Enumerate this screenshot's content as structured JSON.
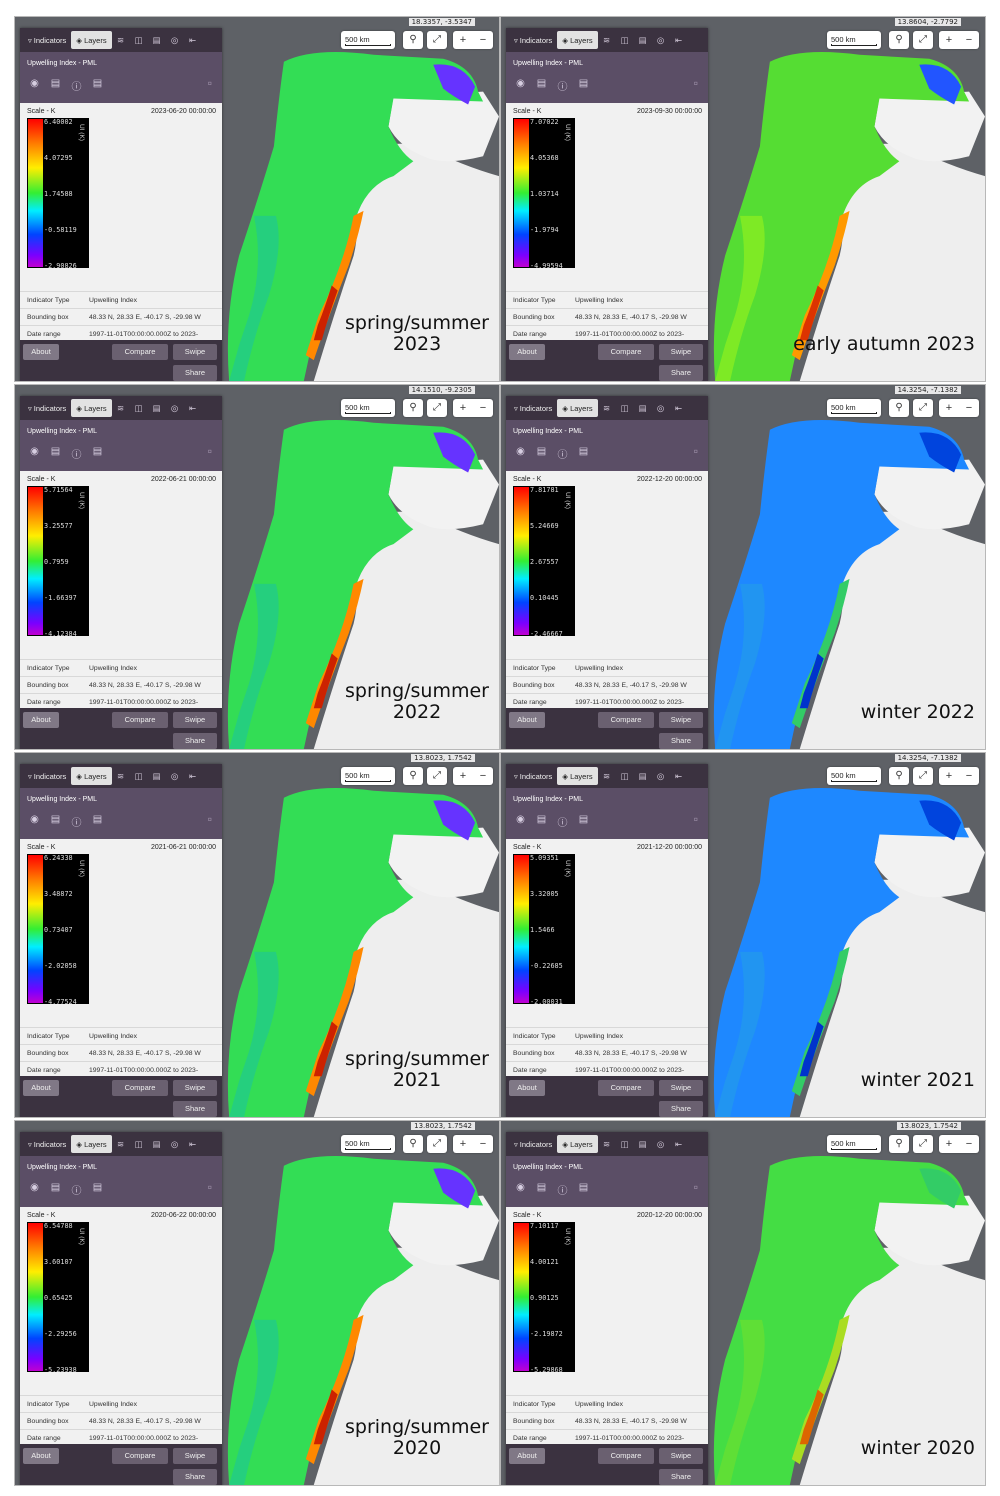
{
  "ui": {
    "tab_indicators": "Indicators",
    "tab_layers": "Layers",
    "layer_name": "Upwelling Index - PML",
    "scale_label": "Scale - K",
    "unit": "UI (K)",
    "scalebar": "500 km",
    "info": [
      {
        "key": "Indicator Type",
        "value": "Upwelling Index"
      },
      {
        "key": "Bounding box",
        "value": "48.33 N, 28.33 E, -40.17 S, -29.98 W"
      },
      {
        "key": "Date range",
        "value": "1997-11-01T00:00:00.000Z to 2023-"
      }
    ],
    "btn_about": "About",
    "btn_compare": "Compare",
    "btn_swipe": "Swipe",
    "btn_share": "Share"
  },
  "icons": {
    "filter": "filter-icon",
    "layers": "layers-icon",
    "eye": "eye-icon",
    "info": "info-icon",
    "chart": "chart-icon",
    "trash": "trash-icon",
    "search": "search-icon",
    "expand": "expand-icon"
  },
  "panels": [
    {
      "coords": "18.3357, -3.5347",
      "date": "2023-06-20 00:00:00",
      "ticks": [
        "6.40002",
        "4.07295",
        "1.74588",
        "-0.58119",
        "-2.90826"
      ],
      "caption": [
        "spring/summer",
        "2023"
      ],
      "theme": "spring"
    },
    {
      "coords": "13.8604, -2.7792",
      "date": "2023-09-30 00:00:00",
      "ticks": [
        "7.07022",
        "4.05368",
        "1.03714",
        "-1.9794",
        "-4.99594"
      ],
      "caption": [
        "early autumn 2023"
      ],
      "theme": "autumn"
    },
    {
      "coords": "14.1510, -9.2305",
      "date": "2022-06-21 00:00:00",
      "ticks": [
        "5.71564",
        "3.25577",
        "0.7959",
        "-1.66397",
        "-4.12384"
      ],
      "caption": [
        "spring/summer",
        "2022"
      ],
      "theme": "spring"
    },
    {
      "coords": "14.3254, -7.1382",
      "date": "2022-12-20 00:00:00",
      "ticks": [
        "7.81781",
        "5.24669",
        "2.67557",
        "0.10445",
        "-2.46667"
      ],
      "caption": [
        "winter 2022"
      ],
      "theme": "winter"
    },
    {
      "coords": "13.8023, 1.7542",
      "date": "2021-06-21 00:00:00",
      "ticks": [
        "6.24338",
        "3.48872",
        "0.73407",
        "-2.02058",
        "-4.77524"
      ],
      "caption": [
        "spring/summer",
        "2021"
      ],
      "theme": "spring"
    },
    {
      "coords": "14.3254, -7.1382",
      "date": "2021-12-20 00:00:00",
      "ticks": [
        "5.09351",
        "3.32005",
        "1.5466",
        "-0.22685",
        "-2.00031"
      ],
      "caption": [
        "winter 2021"
      ],
      "theme": "winter"
    },
    {
      "coords": "13.8023, 1.7542",
      "date": "2020-06-22 00:00:00",
      "ticks": [
        "6.54788",
        "3.60107",
        "0.65425",
        "-2.29256",
        "-5.23938"
      ],
      "caption": [
        "spring/summer",
        "2020"
      ],
      "theme": "spring"
    },
    {
      "coords": "13.8023, 1.7542",
      "date": "2020-12-20 00:00:00",
      "ticks": [
        "7.10117",
        "4.00121",
        "0.90125",
        "-2.19872",
        "-5.29868"
      ],
      "caption": [
        "winter 2020"
      ],
      "theme": "greenwinter"
    }
  ]
}
